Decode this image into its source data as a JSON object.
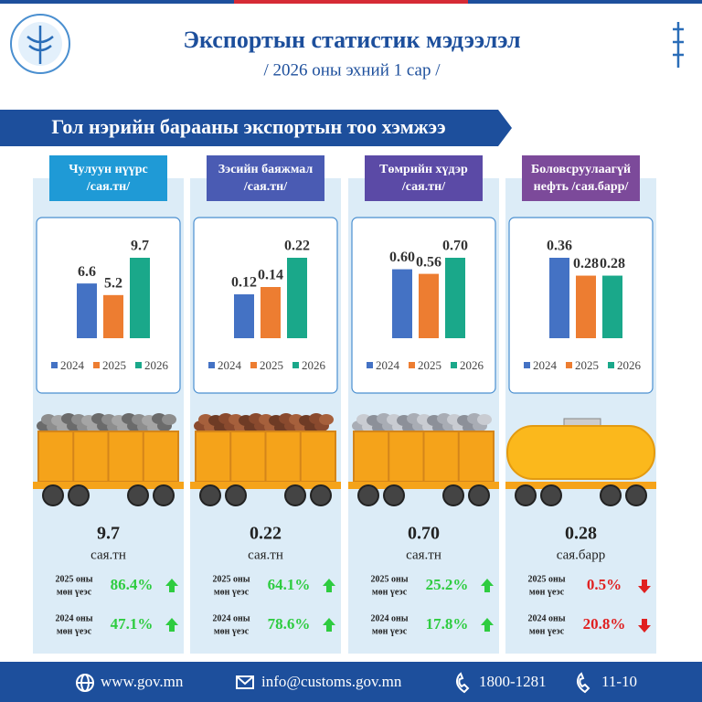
{
  "header": {
    "title": "Экспортын статистик мэдээлэл",
    "subtitle": "/ 2026 оны эхний 1 сар /"
  },
  "section_title": "Гол нэрийн барааны экспортын тоо хэмжээ",
  "chart_data": [
    {
      "type": "bar",
      "title": [
        "Чулуун нүүрс",
        "/сая.тн/"
      ],
      "categories": [
        "2024",
        "2025",
        "2026"
      ],
      "values": [
        6.6,
        5.2,
        9.7
      ],
      "colors": [
        "#4472c4",
        "#ed7d31",
        "#1aa88a"
      ]
    },
    {
      "type": "bar",
      "title": [
        "Зэсийн баяжмал",
        "/сая.тн/"
      ],
      "categories": [
        "2024",
        "2025",
        "2026"
      ],
      "values": [
        0.12,
        0.14,
        0.22
      ],
      "colors": [
        "#4472c4",
        "#ed7d31",
        "#1aa88a"
      ]
    },
    {
      "type": "bar",
      "title": [
        "Төмрийн хүдэр",
        "/сая.тн/"
      ],
      "categories": [
        "2024",
        "2025",
        "2026"
      ],
      "values": [
        0.6,
        0.56,
        0.7
      ],
      "value_labels": [
        "0.60",
        "0.56",
        "0.70"
      ],
      "colors": [
        "#4472c4",
        "#ed7d31",
        "#1aa88a"
      ]
    },
    {
      "type": "bar",
      "title": [
        "Боловсруулаагүй",
        "нефть /сая.барр/"
      ],
      "categories": [
        "2024",
        "2025",
        "2026"
      ],
      "values": [
        0.36,
        0.28,
        0.28
      ],
      "colors": [
        "#4472c4",
        "#ed7d31",
        "#1aa88a"
      ]
    }
  ],
  "summaries": [
    {
      "total": "9.7",
      "unit": "сая.тн",
      "rows": [
        {
          "line1": "2025 оны",
          "line2": "мөн үеэс",
          "change": "86.4%",
          "trend": "up"
        },
        {
          "line1": "2024 оны",
          "line2": "мөн үеэс",
          "change": "47.1%",
          "trend": "up"
        }
      ]
    },
    {
      "total": "0.22",
      "unit": "сая.тн",
      "rows": [
        {
          "line1": "2025 оны",
          "line2": "мөн үеэс",
          "change": "64.1%",
          "trend": "up"
        },
        {
          "line1": "2024 оны",
          "line2": "мөн үеэс",
          "change": "78.6%",
          "trend": "up"
        }
      ]
    },
    {
      "total": "0.70",
      "unit": "сая.тн",
      "rows": [
        {
          "line1": "2025 оны",
          "line2": "мөн үеэс",
          "change": "25.2%",
          "trend": "up"
        },
        {
          "line1": "2024 оны",
          "line2": "мөн үеэс",
          "change": "17.8%",
          "trend": "up"
        }
      ]
    },
    {
      "total": "0.28",
      "unit": "сая.барр",
      "rows": [
        {
          "line1": "2025 оны",
          "line2": "мөн үеэс",
          "change": "0.5%",
          "trend": "down"
        },
        {
          "line1": "2024 оны",
          "line2": "мөн үеэс",
          "change": "20.8%",
          "trend": "down"
        }
      ]
    }
  ],
  "footer": {
    "website": "www.gov.mn",
    "email": "info@customs.gov.mn",
    "phone": "1800-1281",
    "short_phone": "11-10"
  }
}
